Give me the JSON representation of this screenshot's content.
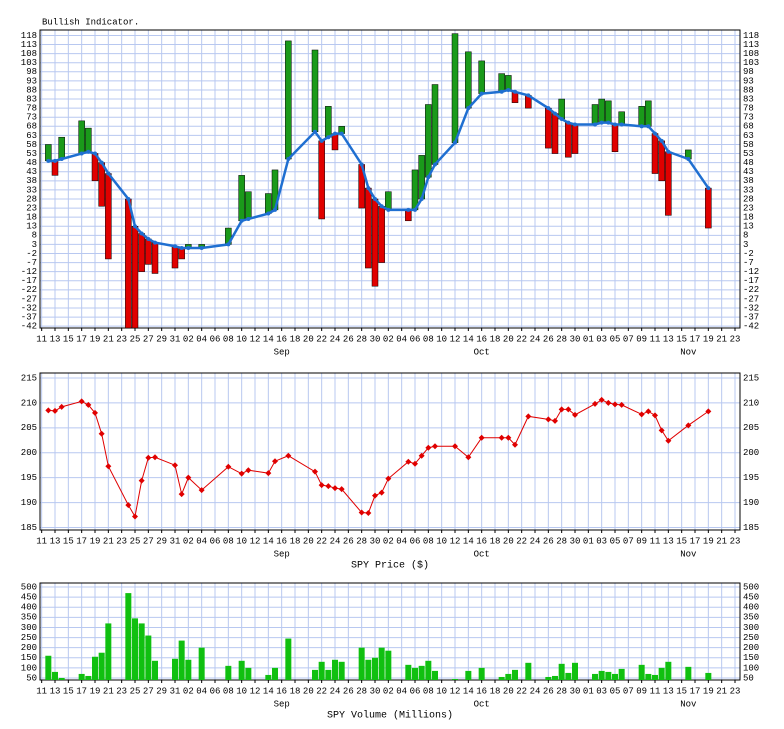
{
  "chart_data": [
    {
      "type": "indicator",
      "title": "Bullish Indicator.",
      "x": [
        1,
        2,
        3,
        6,
        7,
        8,
        9,
        10,
        13,
        14,
        15,
        16,
        17,
        20,
        21,
        22,
        24,
        28,
        30,
        31,
        34,
        35,
        37,
        41,
        42,
        43,
        44,
        45,
        48,
        49,
        50,
        51,
        52,
        55,
        56,
        57,
        58,
        59,
        62,
        64,
        66,
        69,
        70,
        71,
        73,
        76,
        77,
        78,
        79,
        80,
        83,
        84,
        85,
        86,
        87,
        90,
        91,
        92,
        93,
        94,
        97,
        100
      ],
      "values": [
        58,
        41,
        62,
        71,
        67,
        38,
        24,
        -5,
        -43,
        -43,
        -12,
        -8,
        -13,
        -10,
        -5,
        3,
        3,
        12,
        41,
        32,
        31,
        44,
        115,
        110,
        17,
        79,
        55,
        68,
        23,
        -10,
        -20,
        -7,
        32,
        16,
        44,
        52,
        80,
        91,
        119,
        109,
        104,
        97,
        96,
        81,
        78,
        56,
        53,
        83,
        51,
        53,
        80,
        83,
        82,
        54,
        76,
        79,
        82,
        42,
        38,
        19,
        55,
        12
      ],
      "line": [
        49,
        49,
        50,
        53,
        54,
        53,
        48,
        42,
        28,
        13,
        9,
        6,
        4,
        2,
        1,
        1,
        1,
        3,
        16,
        17,
        20,
        22,
        50,
        65,
        60,
        62,
        64,
        64,
        47,
        34,
        28,
        24,
        22,
        22,
        22,
        28,
        40,
        47,
        59,
        78,
        86,
        87,
        88,
        87,
        85,
        78,
        75,
        72,
        70,
        69,
        69,
        70,
        70,
        69,
        69,
        68,
        68,
        64,
        60,
        54,
        50,
        34
      ],
      "up_color": "#1a9a1a",
      "down_color": "#e00000",
      "line_color": "#1f6fd1",
      "xlim": [
        -0.25,
        104.75
      ],
      "xticks": [
        {
          "value": 0,
          "label": "11"
        },
        {
          "value": 2,
          "label": "13"
        },
        {
          "value": 4,
          "label": "15"
        },
        {
          "value": 6,
          "label": "17"
        },
        {
          "value": 8,
          "label": "19"
        },
        {
          "value": 10,
          "label": "21"
        },
        {
          "value": 12,
          "label": "23"
        },
        {
          "value": 14,
          "label": "25"
        },
        {
          "value": 16,
          "label": "27"
        },
        {
          "value": 18,
          "label": "29"
        },
        {
          "value": 20,
          "label": "31"
        },
        {
          "value": 22,
          "label": "02"
        },
        {
          "value": 24,
          "label": "04"
        },
        {
          "value": 26,
          "label": "06"
        },
        {
          "value": 28,
          "label": "08"
        },
        {
          "value": 30,
          "label": "10"
        },
        {
          "value": 32,
          "label": "12"
        },
        {
          "value": 34,
          "label": "14"
        },
        {
          "value": 36,
          "label": "16"
        },
        {
          "value": 38,
          "label": "18"
        },
        {
          "value": 40,
          "label": "20"
        },
        {
          "value": 42,
          "label": "22"
        },
        {
          "value": 44,
          "label": "24"
        },
        {
          "value": 46,
          "label": "26"
        },
        {
          "value": 48,
          "label": "28"
        },
        {
          "value": 50,
          "label": "30"
        },
        {
          "value": 52,
          "label": "02"
        },
        {
          "value": 54,
          "label": "04"
        },
        {
          "value": 56,
          "label": "06"
        },
        {
          "value": 58,
          "label": "08"
        },
        {
          "value": 60,
          "label": "10"
        },
        {
          "value": 62,
          "label": "12"
        },
        {
          "value": 64,
          "label": "14"
        },
        {
          "value": 66,
          "label": "16"
        },
        {
          "value": 68,
          "label": "18"
        },
        {
          "value": 70,
          "label": "20"
        },
        {
          "value": 72,
          "label": "22"
        },
        {
          "value": 74,
          "label": "24"
        },
        {
          "value": 76,
          "label": "26"
        },
        {
          "value": 78,
          "label": "28"
        },
        {
          "value": 80,
          "label": "30"
        },
        {
          "value": 82,
          "label": "01"
        },
        {
          "value": 84,
          "label": "03"
        },
        {
          "value": 86,
          "label": "05"
        },
        {
          "value": 88,
          "label": "07"
        },
        {
          "value": 90,
          "label": "09"
        },
        {
          "value": 92,
          "label": "11"
        },
        {
          "value": 94,
          "label": "13"
        },
        {
          "value": 96,
          "label": "15"
        },
        {
          "value": 98,
          "label": "17"
        },
        {
          "value": 100,
          "label": "19"
        },
        {
          "value": 102,
          "label": "21"
        },
        {
          "value": 104,
          "label": "23"
        }
      ],
      "month_labels": [
        {
          "value": 36,
          "label": "Sep"
        },
        {
          "value": 66,
          "label": "Oct"
        },
        {
          "value": 97,
          "label": "Nov"
        }
      ],
      "ylim": [
        -43,
        121
      ],
      "yticks": [
        -42,
        -37,
        -32,
        -27,
        -22,
        -17,
        -12,
        -7,
        -2,
        3,
        8,
        13,
        18,
        23,
        28,
        33,
        38,
        43,
        48,
        53,
        58,
        63,
        68,
        73,
        78,
        83,
        88,
        93,
        98,
        103,
        108,
        113,
        118
      ],
      "grid": true
    },
    {
      "type": "line",
      "x_label": "SPY Price ($)",
      "x": [
        1,
        2,
        3,
        6,
        7,
        8,
        9,
        10,
        13,
        14,
        15,
        16,
        17,
        20,
        21,
        22,
        24,
        28,
        30,
        31,
        34,
        35,
        37,
        41,
        42,
        43,
        44,
        45,
        48,
        49,
        50,
        51,
        52,
        55,
        56,
        57,
        58,
        59,
        62,
        64,
        66,
        69,
        70,
        71,
        73,
        76,
        77,
        78,
        79,
        80,
        83,
        84,
        85,
        86,
        87,
        90,
        91,
        92,
        93,
        94,
        97,
        100
      ],
      "values": [
        208.5,
        208.4,
        209.2,
        210.3,
        209.6,
        208.0,
        203.8,
        197.3,
        189.5,
        187.2,
        194.4,
        199.0,
        199.1,
        197.5,
        191.7,
        195.0,
        192.5,
        197.2,
        195.8,
        196.5,
        195.9,
        198.3,
        199.4,
        196.2,
        193.5,
        193.3,
        192.9,
        192.7,
        188.0,
        187.9,
        191.4,
        192.0,
        194.8,
        198.2,
        197.8,
        199.4,
        201.0,
        201.3,
        201.3,
        199.1,
        203.0,
        203.0,
        203.0,
        201.6,
        207.3,
        206.7,
        206.4,
        208.7,
        208.7,
        207.6,
        209.8,
        210.6,
        210.0,
        209.7,
        209.6,
        207.7,
        208.3,
        207.5,
        204.5,
        202.4,
        205.5,
        208.3
      ],
      "color": "#e00000",
      "xlim": [
        -0.25,
        104.75
      ],
      "xticks": [
        {
          "value": 0,
          "label": "11"
        },
        {
          "value": 2,
          "label": "13"
        },
        {
          "value": 4,
          "label": "15"
        },
        {
          "value": 6,
          "label": "17"
        },
        {
          "value": 8,
          "label": "19"
        },
        {
          "value": 10,
          "label": "21"
        },
        {
          "value": 12,
          "label": "23"
        },
        {
          "value": 14,
          "label": "25"
        },
        {
          "value": 16,
          "label": "27"
        },
        {
          "value": 18,
          "label": "29"
        },
        {
          "value": 20,
          "label": "31"
        },
        {
          "value": 22,
          "label": "02"
        },
        {
          "value": 24,
          "label": "04"
        },
        {
          "value": 26,
          "label": "06"
        },
        {
          "value": 28,
          "label": "08"
        },
        {
          "value": 30,
          "label": "10"
        },
        {
          "value": 32,
          "label": "12"
        },
        {
          "value": 34,
          "label": "14"
        },
        {
          "value": 36,
          "label": "16"
        },
        {
          "value": 38,
          "label": "18"
        },
        {
          "value": 40,
          "label": "20"
        },
        {
          "value": 42,
          "label": "22"
        },
        {
          "value": 44,
          "label": "24"
        },
        {
          "value": 46,
          "label": "26"
        },
        {
          "value": 48,
          "label": "28"
        },
        {
          "value": 50,
          "label": "30"
        },
        {
          "value": 52,
          "label": "02"
        },
        {
          "value": 54,
          "label": "04"
        },
        {
          "value": 56,
          "label": "06"
        },
        {
          "value": 58,
          "label": "08"
        },
        {
          "value": 60,
          "label": "10"
        },
        {
          "value": 62,
          "label": "12"
        },
        {
          "value": 64,
          "label": "14"
        },
        {
          "value": 66,
          "label": "16"
        },
        {
          "value": 68,
          "label": "18"
        },
        {
          "value": 70,
          "label": "20"
        },
        {
          "value": 72,
          "label": "22"
        },
        {
          "value": 74,
          "label": "24"
        },
        {
          "value": 76,
          "label": "26"
        },
        {
          "value": 78,
          "label": "28"
        },
        {
          "value": 80,
          "label": "30"
        },
        {
          "value": 82,
          "label": "01"
        },
        {
          "value": 84,
          "label": "03"
        },
        {
          "value": 86,
          "label": "05"
        },
        {
          "value": 88,
          "label": "07"
        },
        {
          "value": 90,
          "label": "09"
        },
        {
          "value": 92,
          "label": "11"
        },
        {
          "value": 94,
          "label": "13"
        },
        {
          "value": 96,
          "label": "15"
        },
        {
          "value": 98,
          "label": "17"
        },
        {
          "value": 100,
          "label": "19"
        },
        {
          "value": 102,
          "label": "21"
        },
        {
          "value": 104,
          "label": "23"
        }
      ],
      "month_labels": [
        {
          "value": 36,
          "label": "Sep"
        },
        {
          "value": 66,
          "label": "Oct"
        },
        {
          "value": 97,
          "label": "Nov"
        }
      ],
      "ylim": [
        184.5,
        216
      ],
      "yticks": [
        185,
        190,
        195,
        200,
        205,
        210,
        215
      ],
      "grid": true
    },
    {
      "type": "bar",
      "x_label": "SPY Volume (Millions)",
      "x": [
        1,
        2,
        3,
        6,
        7,
        8,
        9,
        10,
        13,
        14,
        15,
        16,
        17,
        20,
        21,
        22,
        24,
        28,
        30,
        31,
        34,
        35,
        37,
        41,
        42,
        43,
        44,
        45,
        48,
        49,
        50,
        51,
        52,
        55,
        56,
        57,
        58,
        59,
        62,
        64,
        66,
        69,
        70,
        71,
        73,
        76,
        77,
        78,
        79,
        80,
        83,
        84,
        85,
        86,
        87,
        90,
        91,
        92,
        93,
        94,
        97,
        100
      ],
      "values": [
        160,
        80,
        50,
        70,
        60,
        155,
        175,
        320,
        470,
        345,
        320,
        260,
        135,
        145,
        235,
        140,
        200,
        110,
        135,
        100,
        65,
        100,
        245,
        90,
        130,
        90,
        140,
        130,
        200,
        140,
        150,
        200,
        185,
        115,
        100,
        110,
        135,
        85,
        45,
        85,
        100,
        55,
        70,
        90,
        125,
        55,
        60,
        120,
        75,
        125,
        70,
        85,
        80,
        70,
        95,
        115,
        70,
        65,
        100,
        130,
        105,
        75
      ],
      "color": "#10c010",
      "xlim": [
        -0.25,
        104.75
      ],
      "xticks": [
        {
          "value": 0,
          "label": "11"
        },
        {
          "value": 2,
          "label": "13"
        },
        {
          "value": 4,
          "label": "15"
        },
        {
          "value": 6,
          "label": "17"
        },
        {
          "value": 8,
          "label": "19"
        },
        {
          "value": 10,
          "label": "21"
        },
        {
          "value": 12,
          "label": "23"
        },
        {
          "value": 14,
          "label": "25"
        },
        {
          "value": 16,
          "label": "27"
        },
        {
          "value": 18,
          "label": "29"
        },
        {
          "value": 20,
          "label": "31"
        },
        {
          "value": 22,
          "label": "02"
        },
        {
          "value": 24,
          "label": "04"
        },
        {
          "value": 26,
          "label": "06"
        },
        {
          "value": 28,
          "label": "08"
        },
        {
          "value": 30,
          "label": "10"
        },
        {
          "value": 32,
          "label": "12"
        },
        {
          "value": 34,
          "label": "14"
        },
        {
          "value": 36,
          "label": "16"
        },
        {
          "value": 38,
          "label": "18"
        },
        {
          "value": 40,
          "label": "20"
        },
        {
          "value": 42,
          "label": "22"
        },
        {
          "value": 44,
          "label": "24"
        },
        {
          "value": 46,
          "label": "26"
        },
        {
          "value": 48,
          "label": "28"
        },
        {
          "value": 50,
          "label": "30"
        },
        {
          "value": 52,
          "label": "02"
        },
        {
          "value": 54,
          "label": "04"
        },
        {
          "value": 56,
          "label": "06"
        },
        {
          "value": 58,
          "label": "08"
        },
        {
          "value": 60,
          "label": "10"
        },
        {
          "value": 62,
          "label": "12"
        },
        {
          "value": 64,
          "label": "14"
        },
        {
          "value": 66,
          "label": "16"
        },
        {
          "value": 68,
          "label": "18"
        },
        {
          "value": 70,
          "label": "20"
        },
        {
          "value": 72,
          "label": "22"
        },
        {
          "value": 74,
          "label": "24"
        },
        {
          "value": 76,
          "label": "26"
        },
        {
          "value": 78,
          "label": "28"
        },
        {
          "value": 80,
          "label": "30"
        },
        {
          "value": 82,
          "label": "01"
        },
        {
          "value": 84,
          "label": "03"
        },
        {
          "value": 86,
          "label": "05"
        },
        {
          "value": 88,
          "label": "07"
        },
        {
          "value": 90,
          "label": "09"
        },
        {
          "value": 92,
          "label": "11"
        },
        {
          "value": 94,
          "label": "13"
        },
        {
          "value": 96,
          "label": "15"
        },
        {
          "value": 98,
          "label": "17"
        },
        {
          "value": 100,
          "label": "19"
        },
        {
          "value": 102,
          "label": "21"
        },
        {
          "value": 104,
          "label": "23"
        }
      ],
      "month_labels": [
        {
          "value": 36,
          "label": "Sep"
        },
        {
          "value": 66,
          "label": "Oct"
        },
        {
          "value": 97,
          "label": "Nov"
        }
      ],
      "ylim": [
        40,
        520
      ],
      "yticks": [
        50,
        100,
        150,
        200,
        250,
        300,
        350,
        400,
        450,
        500
      ],
      "grid": true
    }
  ]
}
